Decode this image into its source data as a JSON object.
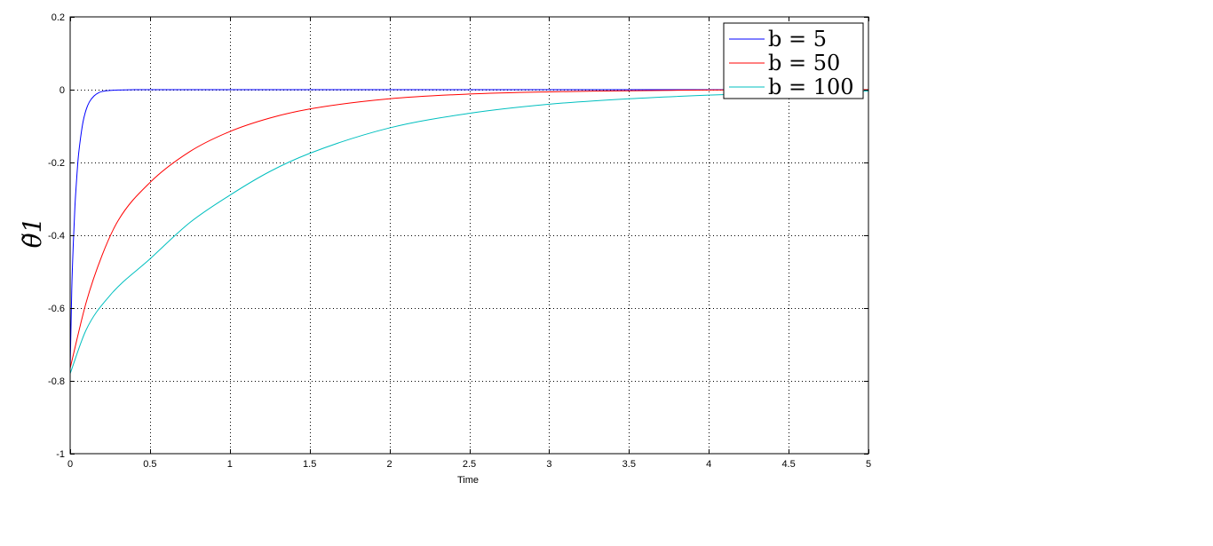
{
  "chart_data": {
    "type": "line",
    "title": "",
    "xlabel": "Time",
    "ylabel": "θ̃1",
    "xlim": [
      0,
      5
    ],
    "ylim": [
      -1,
      0.2
    ],
    "xticks": [
      0,
      0.5,
      1,
      1.5,
      2,
      2.5,
      3,
      3.5,
      4,
      4.5,
      5
    ],
    "xtick_labels": [
      "0",
      "0.5",
      "1",
      "1.5",
      "2",
      "2.5",
      "3",
      "3.5",
      "4",
      "4.5",
      "5"
    ],
    "yticks": [
      -1,
      -0.8,
      -0.6,
      -0.4,
      -0.2,
      0,
      0.2
    ],
    "ytick_labels": [
      "-1",
      "-0.8",
      "-0.6",
      "-0.4",
      "-0.2",
      "0",
      "0.2"
    ],
    "grid": true,
    "legend_position": "top-right",
    "series": [
      {
        "name": "b = 5",
        "color": "#0000ff",
        "x": [
          0,
          0.01,
          0.02,
          0.03,
          0.04,
          0.05,
          0.06,
          0.08,
          0.1,
          0.12,
          0.15,
          0.18,
          0.2,
          0.25,
          0.3,
          0.35,
          0.4,
          0.5,
          1,
          2,
          3,
          4,
          5
        ],
        "y": [
          -0.77,
          -0.55,
          -0.42,
          -0.32,
          -0.25,
          -0.19,
          -0.15,
          -0.09,
          -0.055,
          -0.034,
          -0.017,
          -0.008,
          -0.005,
          -0.002,
          -0.001,
          -0.0005,
          0,
          0,
          0,
          0,
          0,
          0,
          0
        ]
      },
      {
        "name": "b = 50",
        "color": "#ff0000",
        "x": [
          0,
          0.1,
          0.2,
          0.3,
          0.5,
          0.75,
          1,
          1.25,
          1.5,
          2,
          2.5,
          3,
          3.5,
          4,
          4.5,
          5
        ],
        "y": [
          -0.765,
          -0.585,
          -0.455,
          -0.36,
          -0.255,
          -0.17,
          -0.115,
          -0.078,
          -0.053,
          -0.025,
          -0.012,
          -0.006,
          -0.003,
          -0.001,
          -0.0005,
          0
        ]
      },
      {
        "name": "b = 100",
        "color": "#00bfbf",
        "x": [
          0,
          0.1,
          0.25,
          0.5,
          0.75,
          1,
          1.25,
          1.5,
          2,
          2.5,
          3,
          3.5,
          4,
          4.5,
          5
        ],
        "y": [
          -0.78,
          -0.66,
          -0.565,
          -0.465,
          -0.365,
          -0.29,
          -0.225,
          -0.175,
          -0.105,
          -0.065,
          -0.04,
          -0.025,
          -0.015,
          -0.008,
          -0.004
        ]
      }
    ]
  }
}
